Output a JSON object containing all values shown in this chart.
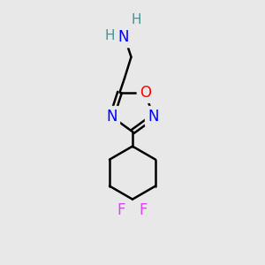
{
  "background_color": "#e8e8e8",
  "bond_color": "#000000",
  "N_color": "#0000ff",
  "O_color": "#ff0000",
  "F_color": "#e040fb",
  "H_color": "#4a9090",
  "N_label_color": "#1a1aff",
  "bond_width": 1.8,
  "figsize": [
    3.0,
    3.0
  ],
  "dpi": 100,
  "xlim": [
    0,
    10
  ],
  "ylim": [
    0,
    10
  ]
}
